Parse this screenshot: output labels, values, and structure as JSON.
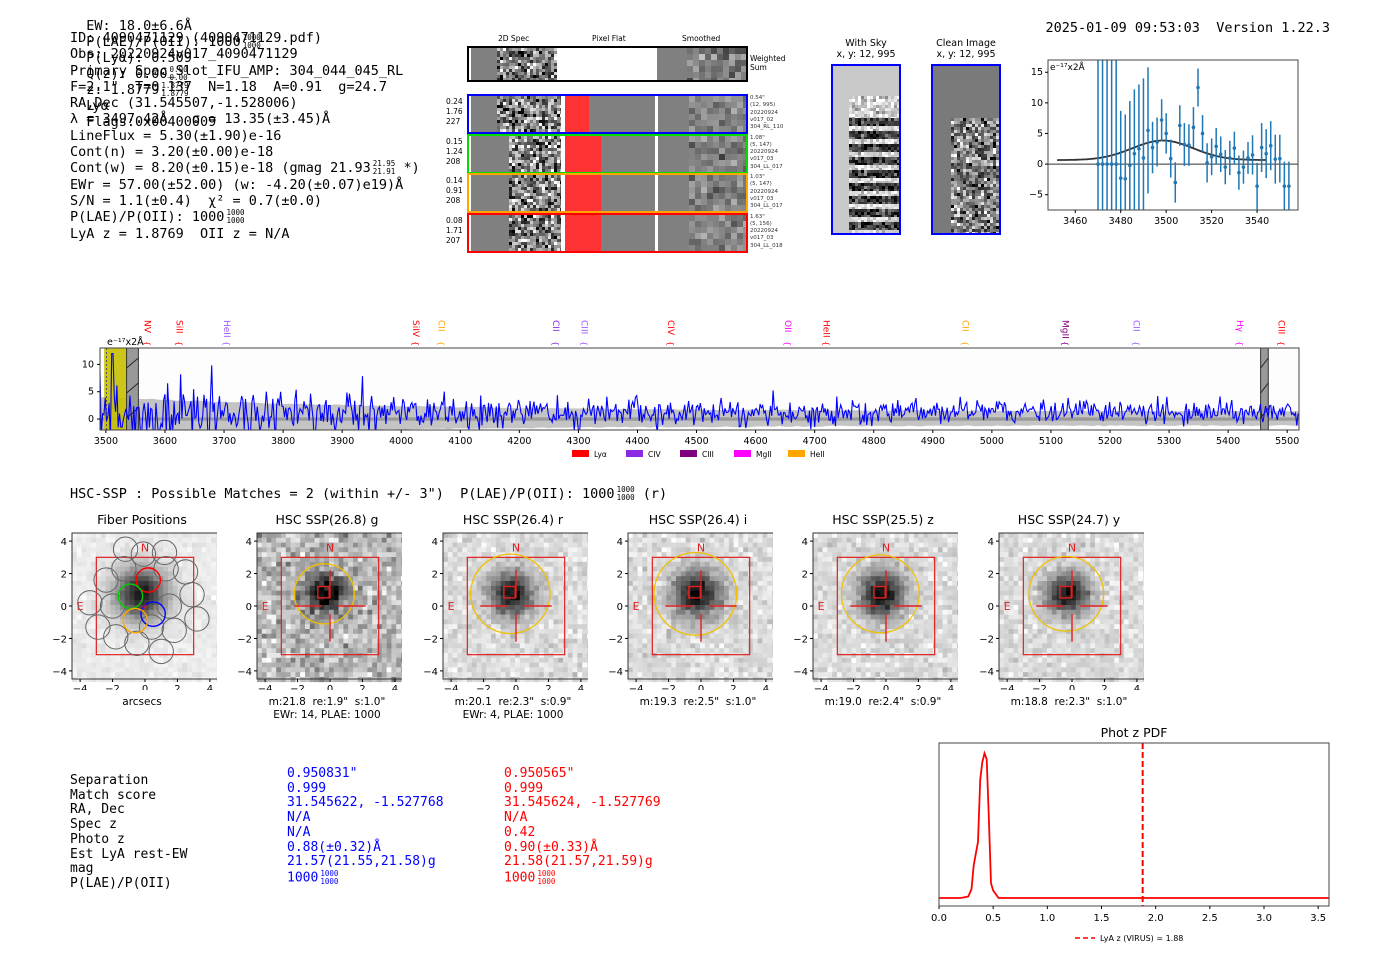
{
  "header": {
    "ew": "EW: 18.0±6.6Å",
    "plae_label": "P(LAE)/P(OII): 1000",
    "plae_hi": "1000",
    "plae_lo": "1000",
    "plya": "P(Lyα): 0.509",
    "qz_label": "Q(z): 0.00",
    "qz_hi": "0.00",
    "qz_lo": "0.00",
    "z_label": "z: 1.8779",
    "z_hi": "1.8779",
    "z_lo": "1.8779",
    "z_line": "Lyα",
    "flags": "Flags:0x00400009",
    "timestamp": "2025-01-09 09:53:03",
    "version": "Version 1.22.3"
  },
  "info": {
    "id": "ID: 4090471129 (4090471129.pdf)",
    "obs": "Obs: 20220924v017_4090471129",
    "primary": "Primary Spec_Slot_IFU_AMP: 304_044_045_RL",
    "params": "F=2.1\"  T=0.137  N=1.18  A=0.91  g=24.7",
    "radec": "RA,Dec (31.545507,-1.528006)",
    "lambda": "λ = 3497.42Å   σ = 13.35(±3.45)Å",
    "lineflux": "LineFlux = 5.30(±1.90)e-16",
    "contn": "Cont(n) = 3.20(±0.00)e-18",
    "contw": "Cont(w) = 8.20(±0.15)e-18 (gmag 21.93",
    "contw_hi": "21.95",
    "contw_lo": "21.91",
    "contw_tail": "*)",
    "ewr": "EWr = 57.00(±52.00) (w: -4.20(±0.07)e19)Å",
    "sn": "S/N = 1.1(±0.4)  χ² = 0.7(±0.0)",
    "plae": "P(LAE)/P(OII): 1000",
    "plae_hi": "1000",
    "plae_lo": "1000",
    "lyaz": "LyA z = 1.8769  OII z = N/A"
  },
  "cutouts": {
    "col_titles": [
      "2D Spec",
      "Pixel Flat",
      "Smoothed"
    ],
    "weighted_sum_label": "Weighted\nSum",
    "rows": [
      {
        "color": "#0000ff",
        "left": [
          "0.24",
          "1.76",
          "227"
        ],
        "right": [
          "0.54\"",
          "(12, 995)",
          "20220924",
          "v017_02",
          "304_RL_110"
        ]
      },
      {
        "color": "#00dd00",
        "left": [
          "0.15",
          "1.24",
          "208"
        ],
        "right": [
          "1.08\"",
          "(5, 147)",
          "20220924",
          "v017_03",
          "304_LL_017"
        ]
      },
      {
        "color": "#ffa500",
        "left": [
          "0.14",
          "0.91",
          "208"
        ],
        "right": [
          "1.03\"",
          "(5, 147)",
          "20220924",
          "v017_03",
          "304_LL_017"
        ]
      },
      {
        "color": "#ff0000",
        "left": [
          "0.08",
          "1.71",
          "207"
        ],
        "right": [
          "1.63\"",
          "(5, 156)",
          "20220924",
          "v017_03",
          "304_LL_018"
        ]
      }
    ]
  },
  "sky_images": [
    {
      "title": "With Sky",
      "coords": "x, y: 12, 995"
    },
    {
      "title": "Clean Image",
      "coords": "x, y: 12, 995"
    }
  ],
  "chart_data": [
    {
      "type": "scatter",
      "title": "",
      "annotation": "e⁻¹⁷x2Å",
      "xlabel": "",
      "ylabel": "",
      "xlim": [
        3448,
        3558
      ],
      "ylim": [
        -7.5,
        17
      ],
      "xticks": [
        3460,
        3480,
        3500,
        3520,
        3540
      ],
      "yticks": [
        -5,
        0,
        5,
        10,
        15
      ],
      "points": [
        [
          3470,
          0,
          40
        ],
        [
          3472,
          0,
          40
        ],
        [
          3474,
          0,
          40
        ],
        [
          3476,
          0,
          40
        ],
        [
          3478,
          0,
          40
        ],
        [
          3480,
          -2.3,
          11
        ],
        [
          3482,
          -2.4,
          10.5
        ],
        [
          3484,
          -0.2,
          10.5
        ],
        [
          3486,
          1.7,
          10.5
        ],
        [
          3488,
          2.5,
          10.5
        ],
        [
          3490,
          1.0,
          13
        ],
        [
          3492,
          5.5,
          10.3
        ],
        [
          3494,
          2.7,
          4.2
        ],
        [
          3496,
          3.6,
          4
        ],
        [
          3498,
          7.2,
          3.4
        ],
        [
          3500,
          5,
          3.3
        ],
        [
          3502,
          0.9,
          3.1
        ],
        [
          3504,
          -3,
          3.3
        ],
        [
          3506,
          6.3,
          3.3
        ],
        [
          3508,
          3.2,
          3.5
        ],
        [
          3510,
          3.1,
          3.4
        ],
        [
          3512,
          6,
          3.3
        ],
        [
          3514,
          12.5,
          3.1
        ],
        [
          3516,
          5,
          3
        ],
        [
          3518,
          0.2,
          3.2
        ],
        [
          3520,
          1.2,
          3
        ],
        [
          3522,
          2.9,
          3
        ],
        [
          3524,
          1.6,
          2.9
        ],
        [
          3526,
          -0.5,
          2.8
        ],
        [
          3528,
          1,
          2.8
        ],
        [
          3530,
          2.6,
          2.7
        ],
        [
          3532,
          -1.4,
          2.8
        ],
        [
          3534,
          -0.5,
          2.7
        ],
        [
          3536,
          1,
          2.6
        ],
        [
          3538,
          1.5,
          3.2
        ],
        [
          3540,
          -3.6,
          3.8
        ],
        [
          3542,
          2.7,
          4
        ],
        [
          3544,
          1.7,
          4
        ],
        [
          3546,
          3,
          4
        ],
        [
          3548,
          0.8,
          4
        ],
        [
          3550,
          0.9,
          3.9
        ],
        [
          3552,
          -3.6,
          4
        ],
        [
          3554,
          -3.6,
          4
        ]
      ],
      "model": {
        "type": "gaussian",
        "center": 3498.5,
        "sigma": 13.35,
        "amplitude": 3.2,
        "continuum": 0.65,
        "x_range": [
          3452,
          3544
        ]
      },
      "colors": {
        "points": "#1f77b4",
        "model": "#333333"
      }
    },
    {
      "type": "line",
      "title": "",
      "annotation": "e⁻¹⁷x2Å",
      "xlim": [
        3490,
        5520
      ],
      "ylim": [
        -2,
        13
      ],
      "xticks": [
        3500,
        3600,
        3700,
        3800,
        3900,
        4000,
        4100,
        4200,
        4300,
        4400,
        4500,
        4600,
        4700,
        4800,
        4900,
        5000,
        5100,
        5200,
        5300,
        5400,
        5500
      ],
      "yticks": [
        0,
        5,
        10
      ],
      "highlight_region": [
        3497,
        3535
      ],
      "masked_regions": [
        [
          3535,
          3555
        ],
        [
          5455,
          5468
        ]
      ],
      "lines": [
        {
          "name": "NV",
          "wave": 3570,
          "color": "#ff0000"
        },
        {
          "name": "SiII",
          "wave": 3625,
          "color": "#ff0000"
        },
        {
          "name": "HeII",
          "wave": 3705,
          "color": "#9b59ff"
        },
        {
          "name": "SiIV",
          "wave": 4025,
          "color": "#ff0000"
        },
        {
          "name": "CII",
          "wave": 4068,
          "color": "#ffa500"
        },
        {
          "name": "CII",
          "wave": 4262,
          "color": "#8a2be2"
        },
        {
          "name": "CIII",
          "wave": 4310,
          "color": "#9b59ff"
        },
        {
          "name": "CIV",
          "wave": 4457,
          "color": "#ff0000"
        },
        {
          "name": "OII",
          "wave": 4655,
          "color": "#ff00ff"
        },
        {
          "name": "HeII",
          "wave": 4720,
          "color": "#ff0000"
        },
        {
          "name": "CII",
          "wave": 4955,
          "color": "#ffa500"
        },
        {
          "name": "MgII",
          "wave": 5125,
          "color": "#800080"
        },
        {
          "name": "CII",
          "wave": 5245,
          "color": "#9b59ff"
        },
        {
          "name": "Hγ",
          "wave": 5420,
          "color": "#ff00ff"
        },
        {
          "name": "CIII",
          "wave": 5490,
          "color": "#ff0000"
        }
      ],
      "legend": [
        {
          "label": "Lyα",
          "color": "#ff0000"
        },
        {
          "label": "CIV",
          "color": "#8a2be2"
        },
        {
          "label": "CIII",
          "color": "#800080"
        },
        {
          "label": "MgII",
          "color": "#ff00ff"
        },
        {
          "label": "HeII",
          "color": "#ffa500"
        }
      ],
      "legend_position": "bottom-center",
      "series_color": "#0000ff",
      "noise_seed": 7
    },
    {
      "type": "line",
      "title": "Phot z PDF",
      "xlim": [
        0,
        3.6
      ],
      "ylim": [
        0,
        1.05
      ],
      "xticks": [
        "0.0",
        "0.5",
        "1.0",
        "1.5",
        "2.0",
        "2.5",
        "3.0",
        "3.5"
      ],
      "x": [
        0,
        0.2,
        0.27,
        0.3,
        0.32,
        0.34,
        0.36,
        0.38,
        0.4,
        0.42,
        0.44,
        0.46,
        0.48,
        0.5,
        0.55,
        0.6,
        3.6
      ],
      "y": [
        0,
        0,
        0.01,
        0.06,
        0.22,
        0.3,
        0.38,
        0.8,
        0.92,
        0.98,
        0.94,
        0.55,
        0.1,
        0.05,
        0,
        0,
        0
      ],
      "vline": {
        "x": 1.88,
        "label": "LyA z (VIRUS) = 1.88",
        "color": "#ff0000"
      },
      "series_color": "#ff0000"
    }
  ],
  "hsc": {
    "title": "HSC-SSP : Possible Matches = 2 (within +/- 3\")  P(LAE)/P(OII): 1000",
    "plae_hi": "1000",
    "plae_lo": "1000",
    "tail": "(r)",
    "panels": [
      {
        "title": "Fiber Positions",
        "caption1": "arcsecs",
        "caption2": "",
        "type": "fibers"
      },
      {
        "title": "HSC SSP(26.8) g",
        "caption1": "m:21.8  re:1.9\"  s:1.0\"",
        "caption2": "EWr: 14, PLAE: 1000",
        "ell": 1.85
      },
      {
        "title": "HSC SSP(26.4) r",
        "caption1": "m:20.1  re:2.3\"  s:0.9\"",
        "caption2": "EWr: 4, PLAE: 1000",
        "ell": 2.45
      },
      {
        "title": "HSC SSP(26.4) i",
        "caption1": "m:19.3  re:2.5\"  s:1.0\"",
        "caption2": "",
        "ell": 2.55
      },
      {
        "title": "HSC SSP(25.5) z",
        "caption1": "m:19.0  re:2.4\"  s:0.9\"",
        "caption2": "",
        "ell": 2.4
      },
      {
        "title": "HSC SSP(24.7) y",
        "caption1": "m:18.8  re:2.3\"  s:1.0\"",
        "caption2": "",
        "ell": 2.3
      }
    ],
    "axis_ticks": [
      "-4",
      "-2",
      "0",
      "2",
      "4"
    ],
    "compass": {
      "n": "N",
      "e": "E"
    }
  },
  "matches": {
    "labels": [
      "Separation",
      "Match score",
      "RA, Dec",
      "Spec z",
      "Photo z",
      "Est LyA rest-EW",
      "mag",
      "P(LAE)/P(OII)"
    ],
    "blue": [
      "0.950831\"",
      "0.999",
      "31.545622, -1.527768",
      "N/A",
      "N/A",
      "0.88(±0.32)Å",
      "21.57(21.55,21.58)g",
      "1000"
    ],
    "red": [
      "0.950565\"",
      "0.999",
      "31.545624, -1.527769",
      "N/A",
      "0.42",
      "0.90(±0.33)Å",
      "21.58(21.57,21.59)g",
      "1000"
    ],
    "frac_hi": "1000",
    "frac_lo": "1000",
    "colors": {
      "blue": "#0000ff",
      "red": "#ff0000"
    }
  }
}
